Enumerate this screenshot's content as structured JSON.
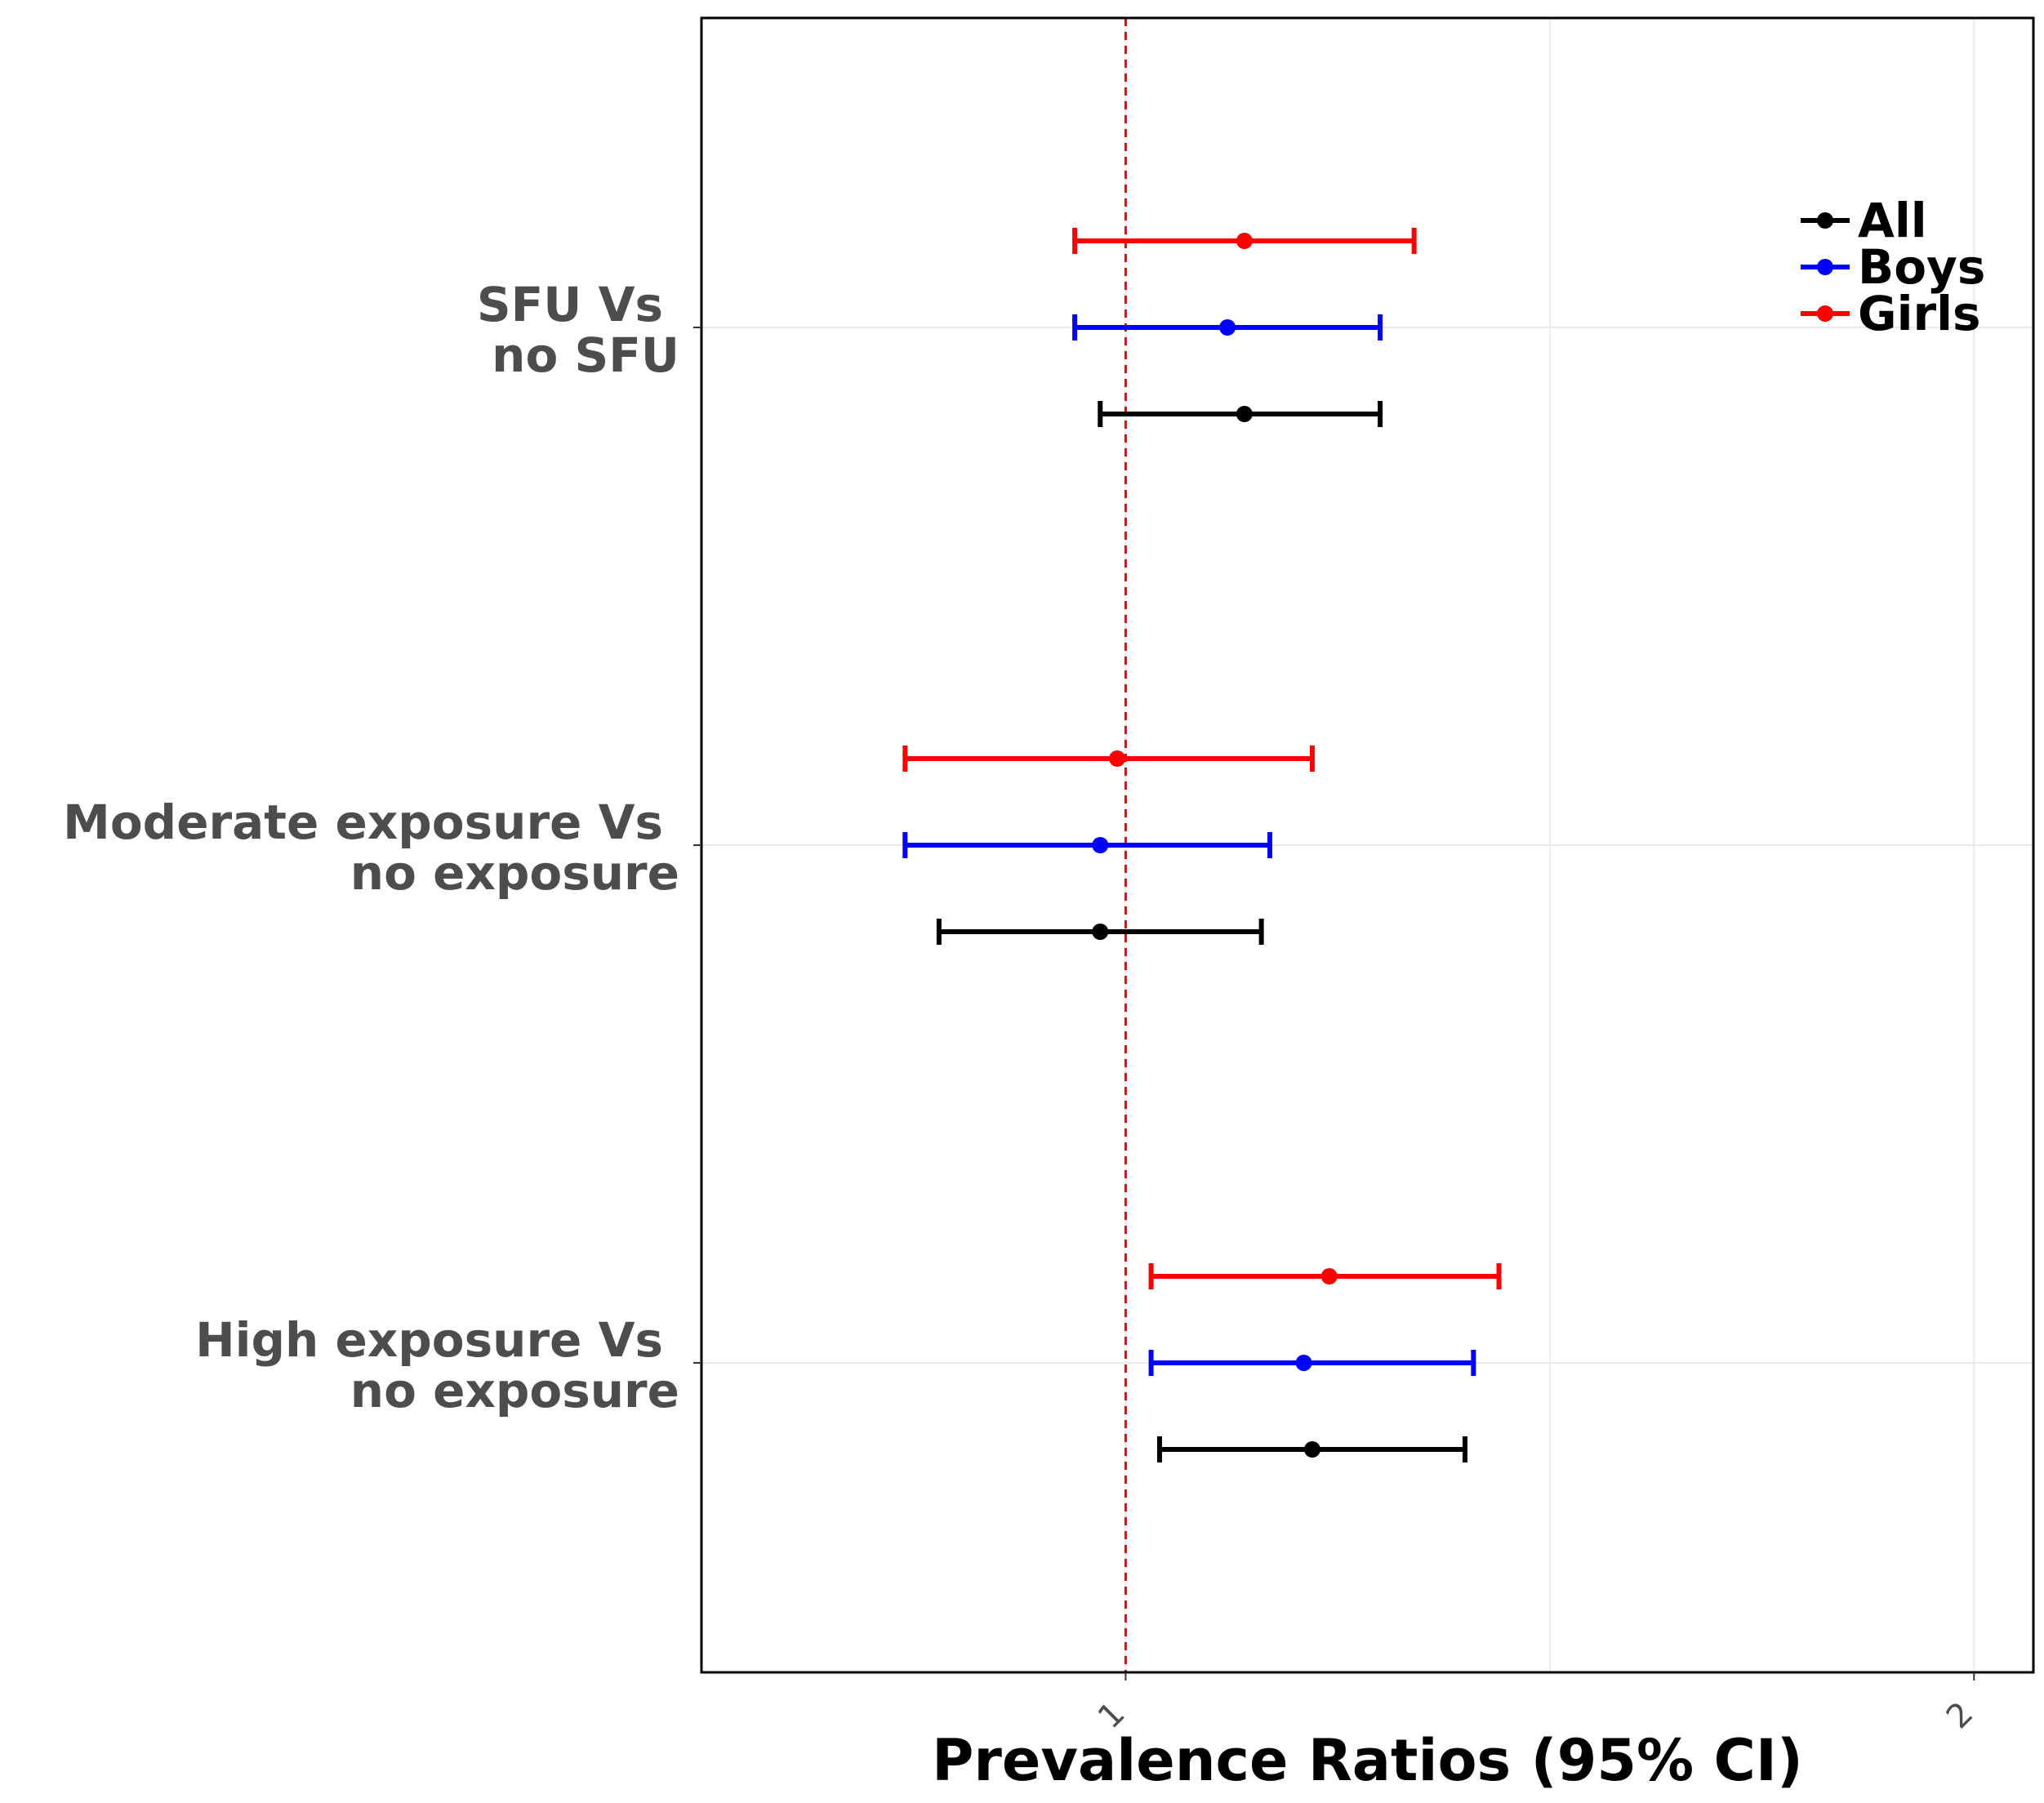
{
  "chart_data": {
    "type": "forest",
    "title": "",
    "xlabel": "Prevalence Ratios (95% CI)",
    "ylabel": "",
    "xlim": [
      0.5,
      2.07
    ],
    "xticks": [
      1,
      2
    ],
    "xtick_labels": [
      "1",
      "2"
    ],
    "reference_line": 1,
    "reference_line_color": "#ff0000",
    "grid": true,
    "legend_position": "top-right",
    "categories": [
      {
        "line1": "SFU Vs",
        "line2": "no SFU"
      },
      {
        "line1": "Moderate exposure Vs",
        "line2": "no exposure"
      },
      {
        "line1": "High exposure Vs",
        "line2": "no exposure"
      }
    ],
    "series": [
      {
        "name": "All",
        "color": "#000000",
        "points": [
          {
            "category": 0,
            "estimate": 1.14,
            "lower": 0.97,
            "upper": 1.3
          },
          {
            "category": 1,
            "estimate": 0.97,
            "lower": 0.78,
            "upper": 1.16
          },
          {
            "category": 2,
            "estimate": 1.22,
            "lower": 1.04,
            "upper": 1.4
          }
        ]
      },
      {
        "name": "Boys",
        "color": "#0000ff",
        "points": [
          {
            "category": 0,
            "estimate": 1.12,
            "lower": 0.94,
            "upper": 1.3
          },
          {
            "category": 1,
            "estimate": 0.97,
            "lower": 0.74,
            "upper": 1.17
          },
          {
            "category": 2,
            "estimate": 1.21,
            "lower": 1.03,
            "upper": 1.41
          }
        ]
      },
      {
        "name": "Girls",
        "color": "#ff0000",
        "points": [
          {
            "category": 0,
            "estimate": 1.14,
            "lower": 0.94,
            "upper": 1.34
          },
          {
            "category": 1,
            "estimate": 0.99,
            "lower": 0.74,
            "upper": 1.22
          },
          {
            "category": 2,
            "estimate": 1.24,
            "lower": 1.03,
            "upper": 1.44
          }
        ]
      }
    ]
  }
}
